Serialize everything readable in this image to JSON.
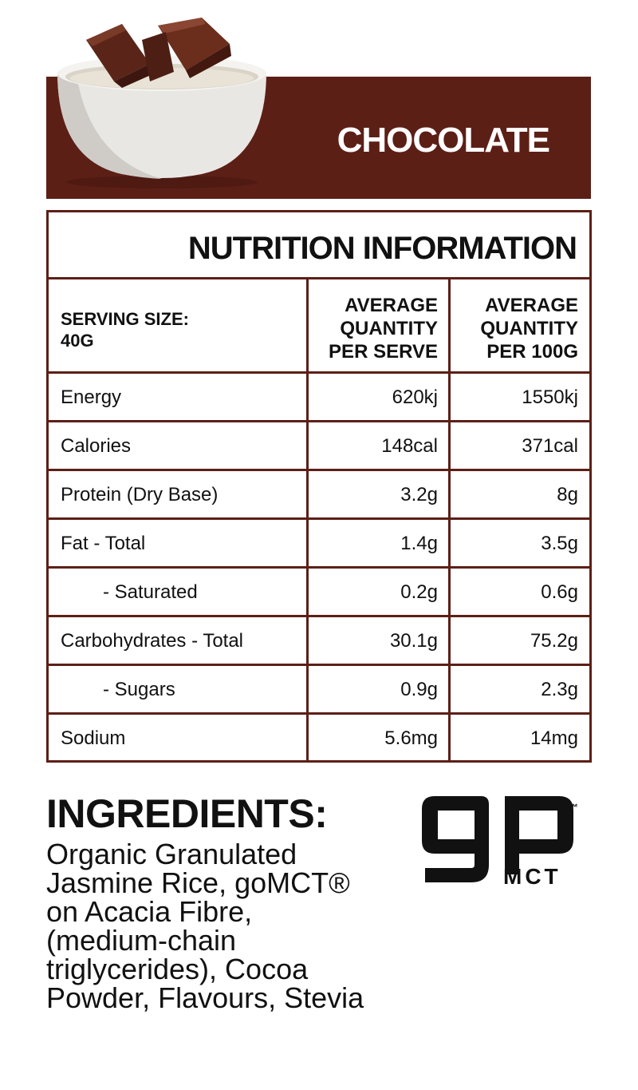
{
  "flavour": "CHOCOLATE",
  "nutrition": {
    "title": "NUTRITION INFORMATION",
    "serving_size": "SERVING SIZE:\n40G",
    "col_serve": "AVERAGE\nQUANTITY\nPER SERVE",
    "col_100g": "AVERAGE\nQUANTITY\nPER 100G",
    "rows": [
      {
        "name": "Energy",
        "serve": "620kj",
        "per100": "1550kj"
      },
      {
        "name": "Calories",
        "serve": "148cal",
        "per100": "371cal"
      },
      {
        "name": "Protein (Dry Base)",
        "serve": "3.2g",
        "per100": "8g"
      },
      {
        "name": "Fat - Total",
        "serve": "1.4g",
        "per100": "3.5g"
      },
      {
        "name": "- Saturated",
        "serve": "0.2g",
        "per100": "0.6g"
      },
      {
        "name": "Carbohydrates - Total",
        "serve": "30.1g",
        "per100": "75.2g"
      },
      {
        "name": "- Sugars",
        "serve": "0.9g",
        "per100": "2.3g"
      },
      {
        "name": "Sodium",
        "serve": "5.6mg",
        "per100": "14mg"
      }
    ]
  },
  "ingredients": {
    "heading": "INGREDIENTS:",
    "text": "Organic Granulated Jasmine Rice, goMCT® on Acacia Fibre, (medium-chain triglycerides), Cocoa Powder, Flavours, Stevia"
  },
  "logo": {
    "sub": "MCT",
    "tm": "™",
    "brand_color": "#111111"
  },
  "colors": {
    "accent": "#5c1f16"
  }
}
